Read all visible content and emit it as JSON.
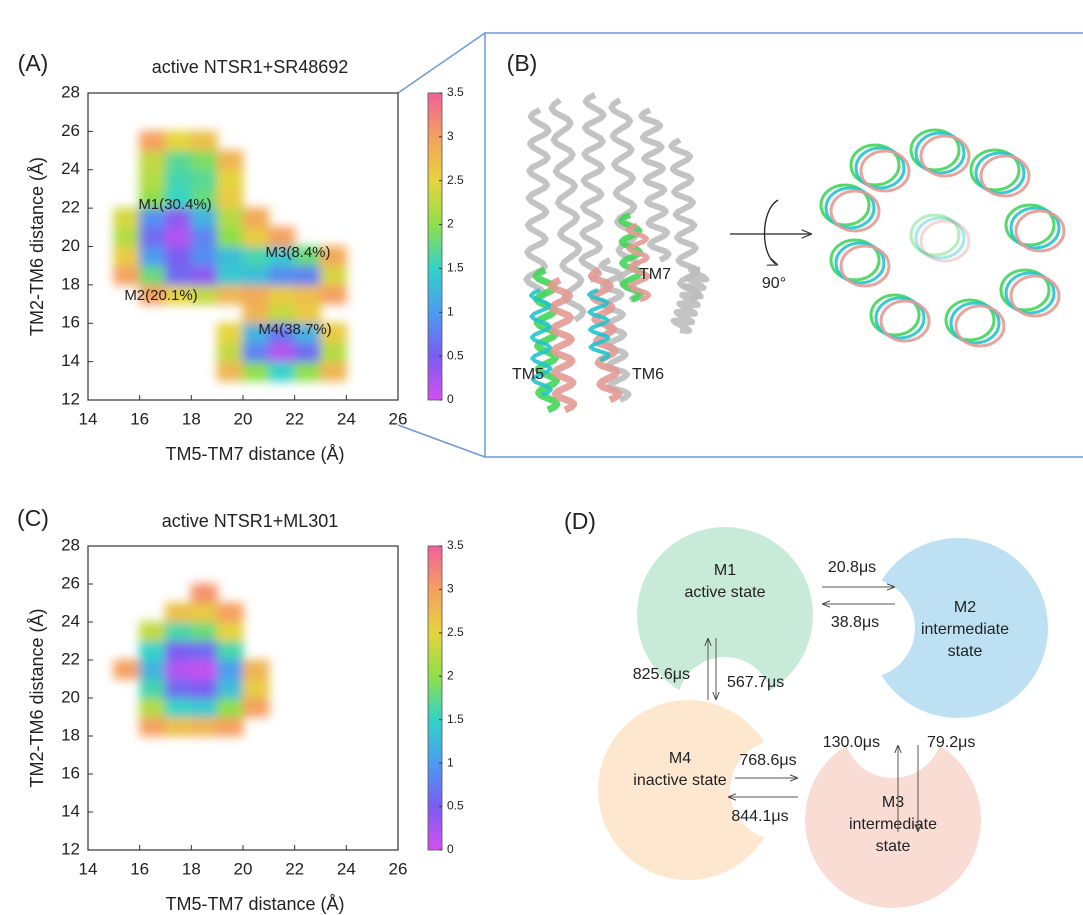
{
  "chart_data": [
    {
      "type": "heatmap",
      "panel_label": "(A)",
      "title": "active NTSR1+SR48692",
      "x_label": "TM5-TM7 distance (Å)",
      "y_label": "TM2-TM6 distance (Å)",
      "xlim": [
        14,
        26
      ],
      "ylim": [
        12,
        28
      ],
      "xticks": [
        14,
        16,
        18,
        20,
        22,
        24,
        26
      ],
      "yticks": [
        12,
        14,
        16,
        18,
        20,
        22,
        24,
        26,
        28
      ],
      "x_bins": [
        14,
        15,
        16,
        17,
        18,
        19,
        20,
        21,
        22,
        23,
        24,
        25,
        26
      ],
      "y_bins": [
        12,
        13,
        14,
        15,
        16,
        17,
        18,
        19,
        20,
        21,
        22,
        23,
        24,
        25,
        26,
        27,
        28
      ],
      "z": [
        [
          null,
          null,
          null,
          null,
          null,
          null,
          null,
          null,
          null,
          null,
          null,
          null
        ],
        [
          null,
          null,
          null,
          null,
          null,
          2.8,
          2.0,
          1.5,
          2.0,
          2.8,
          null,
          null
        ],
        [
          null,
          null,
          null,
          null,
          null,
          2.3,
          0.8,
          0.2,
          0.6,
          2.2,
          null,
          null
        ],
        [
          null,
          null,
          null,
          null,
          null,
          2.5,
          1.2,
          0.7,
          1.2,
          2.6,
          null,
          null
        ],
        [
          null,
          null,
          null,
          null,
          null,
          null,
          2.8,
          2.3,
          2.6,
          null,
          null,
          null
        ],
        [
          null,
          null,
          3.0,
          2.5,
          2.3,
          2.8,
          2.9,
          2.6,
          2.7,
          3.0,
          null,
          null
        ],
        [
          null,
          3.0,
          1.8,
          0.6,
          0.4,
          1.4,
          1.3,
          0.9,
          0.8,
          2.4,
          null,
          null
        ],
        [
          null,
          2.6,
          1.0,
          0.5,
          0.9,
          1.3,
          1.6,
          1.4,
          1.8,
          2.9,
          null,
          null
        ],
        [
          null,
          2.2,
          0.6,
          0.2,
          0.8,
          2.0,
          2.6,
          3.0,
          null,
          null,
          null,
          null
        ],
        [
          null,
          2.4,
          0.9,
          0.4,
          1.2,
          2.2,
          2.9,
          null,
          null,
          null,
          null,
          null
        ],
        [
          null,
          null,
          2.0,
          1.5,
          1.8,
          2.6,
          null,
          null,
          null,
          null,
          null,
          null
        ],
        [
          null,
          null,
          2.2,
          1.6,
          1.7,
          2.5,
          null,
          null,
          null,
          null,
          null,
          null
        ],
        [
          null,
          null,
          2.3,
          1.7,
          1.9,
          2.8,
          null,
          null,
          null,
          null,
          null,
          null
        ],
        [
          null,
          null,
          3.0,
          2.5,
          2.7,
          null,
          null,
          null,
          null,
          null,
          null,
          null
        ],
        [
          null,
          null,
          null,
          null,
          null,
          null,
          null,
          null,
          null,
          null,
          null,
          null
        ],
        [
          null,
          null,
          null,
          null,
          null,
          null,
          null,
          null,
          null,
          null,
          null,
          null
        ]
      ],
      "zlim": [
        0,
        3.5
      ],
      "cticks": [
        0,
        0.5,
        1,
        1.5,
        2,
        2.5,
        3,
        3.5
      ],
      "colormap": [
        "#d64ef0",
        "#7b5df2",
        "#4b9cf0",
        "#33d3c8",
        "#8fdf4a",
        "#e6d43e",
        "#f5a060",
        "#f0609a"
      ],
      "annotations": [
        "M1(30.4%)",
        "M3(8.4%)",
        "M2(20.1%)",
        "M4(38.7%)"
      ]
    },
    {
      "type": "heatmap",
      "panel_label": "(C)",
      "title": "active NTSR1+ML301",
      "x_label": "TM5-TM7 distance (Å)",
      "y_label": "TM2-TM6 distance (Å)",
      "xlim": [
        14,
        26
      ],
      "ylim": [
        12,
        28
      ],
      "xticks": [
        14,
        16,
        18,
        20,
        22,
        24,
        26
      ],
      "yticks": [
        12,
        14,
        16,
        18,
        20,
        22,
        24,
        26,
        28
      ],
      "x_bins": [
        14,
        15,
        16,
        17,
        18,
        19,
        20,
        21,
        22,
        23,
        24,
        25,
        26
      ],
      "y_bins": [
        12,
        13,
        14,
        15,
        16,
        17,
        18,
        19,
        20,
        21,
        22,
        23,
        24,
        25,
        26,
        27,
        28
      ],
      "z": [
        [
          null,
          null,
          null,
          null,
          null,
          null,
          null,
          null,
          null,
          null,
          null,
          null
        ],
        [
          null,
          null,
          null,
          null,
          null,
          null,
          null,
          null,
          null,
          null,
          null,
          null
        ],
        [
          null,
          null,
          null,
          null,
          null,
          null,
          null,
          null,
          null,
          null,
          null,
          null
        ],
        [
          null,
          null,
          null,
          null,
          null,
          null,
          null,
          null,
          null,
          null,
          null,
          null
        ],
        [
          null,
          null,
          null,
          null,
          null,
          null,
          null,
          null,
          null,
          null,
          null,
          null
        ],
        [
          null,
          null,
          null,
          null,
          null,
          null,
          null,
          null,
          null,
          null,
          null,
          null
        ],
        [
          null,
          null,
          3.0,
          2.7,
          2.8,
          3.0,
          null,
          null,
          null,
          null,
          null,
          null
        ],
        [
          null,
          null,
          2.2,
          1.5,
          1.4,
          2.0,
          3.0,
          null,
          null,
          null,
          null,
          null
        ],
        [
          null,
          null,
          1.6,
          0.6,
          0.5,
          1.3,
          2.6,
          null,
          null,
          null,
          null,
          null
        ],
        [
          null,
          3.0,
          1.2,
          0.2,
          0.1,
          1.0,
          2.8,
          null,
          null,
          null,
          null,
          null
        ],
        [
          null,
          null,
          1.5,
          0.5,
          0.6,
          1.6,
          null,
          null,
          null,
          null,
          null,
          null
        ],
        [
          null,
          null,
          2.3,
          1.6,
          1.8,
          2.5,
          null,
          null,
          null,
          null,
          null,
          null
        ],
        [
          null,
          null,
          null,
          2.7,
          2.6,
          3.0,
          null,
          null,
          null,
          null,
          null,
          null
        ],
        [
          null,
          null,
          null,
          null,
          3.1,
          null,
          null,
          null,
          null,
          null,
          null,
          null
        ],
        [
          null,
          null,
          null,
          null,
          null,
          null,
          null,
          null,
          null,
          null,
          null,
          null
        ],
        [
          null,
          null,
          null,
          null,
          null,
          null,
          null,
          null,
          null,
          null,
          null,
          null
        ]
      ],
      "zlim": [
        0,
        3.5
      ],
      "cticks": [
        0,
        0.5,
        1,
        1.5,
        2,
        2.5,
        3,
        3.5
      ],
      "colormap": [
        "#d64ef0",
        "#7b5df2",
        "#4b9cf0",
        "#33d3c8",
        "#8fdf4a",
        "#e6d43e",
        "#f5a060",
        "#f0609a"
      ],
      "annotations": []
    }
  ],
  "panel_b": {
    "label": "(B)",
    "helices": [
      "TM7",
      "TM5",
      "TM6"
    ],
    "rotation": "90°"
  },
  "panel_d": {
    "label": "(D)",
    "states": [
      {
        "lines": [
          "M1",
          "active state"
        ],
        "color": "#c8ead9"
      },
      {
        "lines": [
          "M2",
          "intermediate",
          "state"
        ],
        "color": "#bde1f2"
      },
      {
        "lines": [
          "M3",
          "intermediate",
          "state"
        ],
        "color": "#f9dcd4"
      },
      {
        "lines": [
          "M4",
          "inactive state"
        ],
        "color": "#fde7cf"
      }
    ],
    "rates": [
      "20.8μs",
      "38.8μs",
      "825.6μs",
      "567.7μs",
      "130.0μs",
      "79.2μs",
      "768.6μs",
      "844.1μs"
    ]
  }
}
